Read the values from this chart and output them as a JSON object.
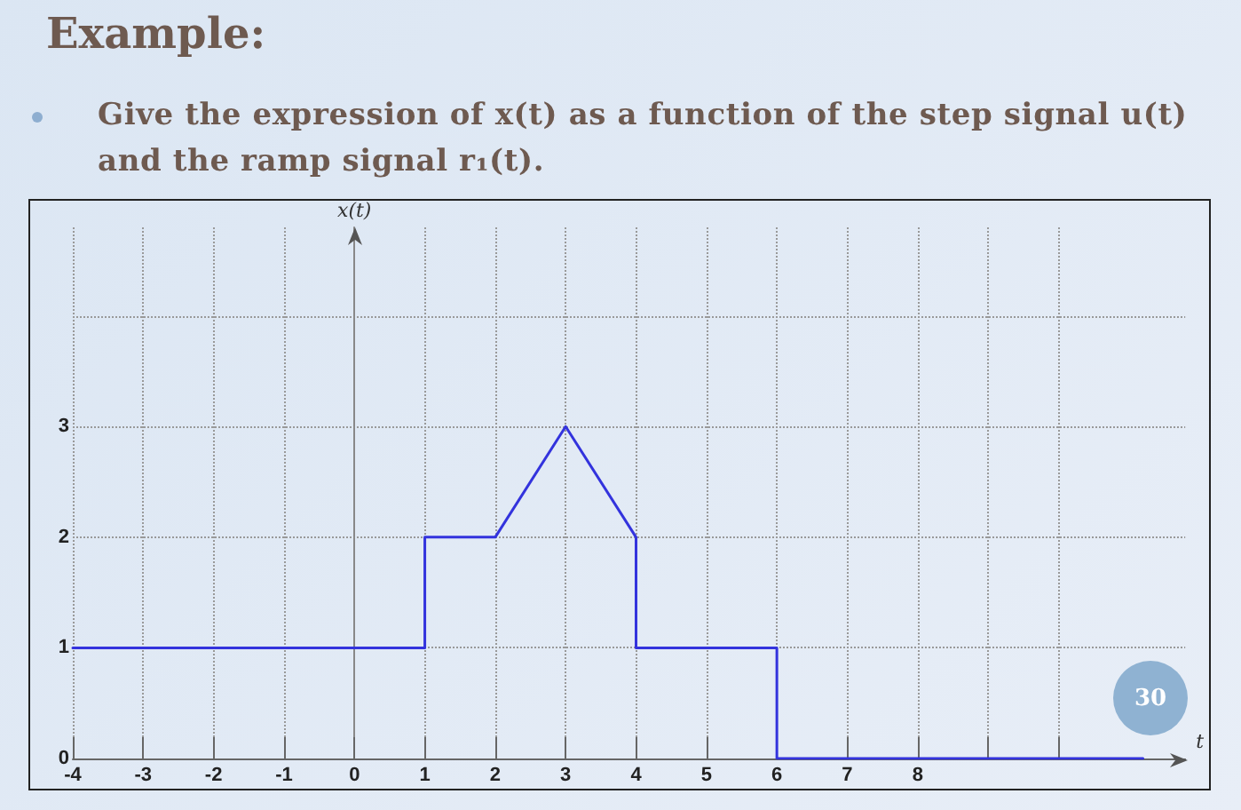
{
  "chart_data": {
    "type": "line",
    "title": "Example:",
    "subtitle": "Give the expression of x(t) as a function of the step signal u(t) and the ramp signal r₁(t).",
    "xlabel": "t",
    "ylabel": "x(t)",
    "annotations": [
      "30"
    ],
    "series": [
      {
        "color": "#3333dd",
        "x": [
          -4,
          1,
          1,
          2,
          3,
          4,
          4,
          6,
          6,
          11.2
        ],
        "values": [
          1,
          1,
          2,
          2,
          3,
          2,
          1,
          1,
          0,
          0
        ]
      }
    ],
    "xlim": [
      -4,
      11.8
    ],
    "xticks": [
      -4,
      -3,
      -2,
      -1,
      0,
      1,
      2,
      3,
      4,
      5,
      6,
      7,
      8,
      {
        "value": 9,
        "label": null
      },
      {
        "value": 10,
        "label": null
      }
    ],
    "ylim": [
      0,
      4.8
    ],
    "yticks": [
      0,
      1,
      2,
      3,
      {
        "value": 4,
        "label": null
      }
    ],
    "grid": true,
    "line_style": "solid"
  }
}
